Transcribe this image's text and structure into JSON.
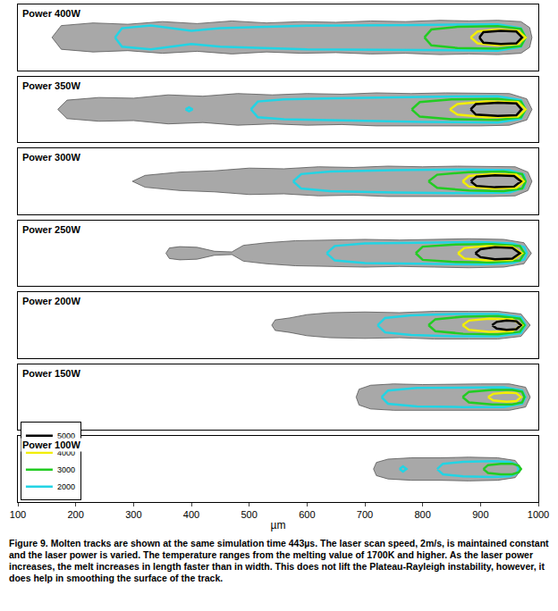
{
  "chart_data": {
    "type": "contour",
    "xlabel": "µm",
    "xlim": [
      100,
      1000
    ],
    "xticks": [
      100,
      200,
      300,
      400,
      500,
      600,
      700,
      800,
      900,
      1000
    ],
    "ylim": [
      -50,
      50
    ],
    "tick_labels": "x",
    "grid": false,
    "legend": "lower left",
    "levels": [
      {
        "value": 5000,
        "color": "#000000"
      },
      {
        "value": 4000,
        "color": "#f2ee00"
      },
      {
        "value": 3000,
        "color": "#22cc22"
      },
      {
        "value": 2000,
        "color": "#22d4e4"
      }
    ],
    "panels": [
      {
        "title": "Power 400W",
        "track": {
          "color": "#a8a8a8",
          "x": [
            159,
            175,
            230,
            290,
            350,
            410,
            470,
            530,
            590,
            650,
            710,
            770,
            830,
            880,
            930,
            970,
            985,
            989
          ],
          "half_width": [
            0,
            18,
            22,
            20,
            24,
            21,
            25,
            22,
            24,
            23,
            25,
            24,
            26,
            25,
            26,
            24,
            15,
            0
          ]
        },
        "contours": [
          {
            "level": 2000,
            "x": [
              268,
              280,
              330,
              400,
              450,
              600,
              800,
              930,
              970,
              978
            ],
            "half_width": [
              0,
              14,
              18,
              10,
              14,
              18,
              19,
              20,
              14,
              0
            ]
          },
          {
            "level": 3000,
            "x": [
              803,
              815,
              860,
              930,
              970,
              978
            ],
            "half_width": [
              0,
              12,
              16,
              17,
              13,
              0
            ]
          },
          {
            "level": 4000,
            "x": [
              883,
              895,
              930,
              965,
              978
            ],
            "half_width": [
              0,
              9,
              12,
              10,
              0
            ]
          },
          {
            "level": 5000,
            "x": [
              898,
              905,
              935,
              962,
              972
            ],
            "half_width": [
              0,
              8,
              10,
              9,
              0
            ]
          }
        ]
      },
      {
        "title": "Power 350W",
        "track": {
          "color": "#a8a8a8",
          "x": [
            169,
            185,
            240,
            300,
            360,
            420,
            480,
            540,
            600,
            660,
            720,
            780,
            840,
            900,
            950,
            980,
            989
          ],
          "half_width": [
            0,
            14,
            18,
            17,
            22,
            20,
            24,
            22,
            24,
            23,
            25,
            24,
            25,
            25,
            24,
            16,
            0
          ]
        },
        "contours": [
          {
            "level": 2000,
            "x": [
              390,
              396,
              402
            ],
            "half_width": [
              0,
              3,
              0
            ]
          },
          {
            "level": 2000,
            "x": [
              503,
              515,
              560,
              650,
              800,
              930,
              970,
              978
            ],
            "half_width": [
              0,
              12,
              15,
              17,
              19,
              20,
              14,
              0
            ]
          },
          {
            "level": 3000,
            "x": [
              781,
              795,
              850,
              930,
              970,
              978
            ],
            "half_width": [
              0,
              11,
              15,
              16,
              12,
              0
            ]
          },
          {
            "level": 4000,
            "x": [
              847,
              860,
              910,
              965,
              978
            ],
            "half_width": [
              0,
              8,
              12,
              11,
              0
            ]
          },
          {
            "level": 5000,
            "x": [
              883,
              892,
              930,
              962,
              971
            ],
            "half_width": [
              0,
              8,
              10,
              9,
              0
            ]
          }
        ]
      },
      {
        "title": "Power 300W",
        "track": {
          "color": "#a8a8a8",
          "x": [
            298,
            320,
            380,
            440,
            500,
            560,
            620,
            680,
            740,
            800,
            860,
            920,
            960,
            982,
            989
          ],
          "half_width": [
            0,
            9,
            14,
            16,
            20,
            19,
            22,
            21,
            23,
            22,
            23,
            23,
            22,
            14,
            0
          ]
        },
        "contours": [
          {
            "level": 2000,
            "x": [
              576,
              590,
              640,
              750,
              880,
              950,
              975,
              978
            ],
            "half_width": [
              0,
              11,
              15,
              17,
              18,
              17,
              10,
              0
            ]
          },
          {
            "level": 3000,
            "x": [
              810,
              825,
              880,
              940,
              972,
              978
            ],
            "half_width": [
              0,
              10,
              14,
              15,
              11,
              0
            ]
          },
          {
            "level": 4000,
            "x": [
              869,
              880,
              920,
              962,
              975
            ],
            "half_width": [
              0,
              8,
              11,
              10,
              0
            ]
          },
          {
            "level": 5000,
            "x": [
              883,
              893,
              925,
              958,
              970
            ],
            "half_width": [
              0,
              7,
              9,
              8,
              0
            ]
          }
        ]
      },
      {
        "title": "Power 250W",
        "track": {
          "color": "#a8a8a8",
          "x": [
            356,
            362,
            380,
            410,
            440,
            470,
            490,
            530,
            580,
            640,
            700,
            760,
            820,
            880,
            940,
            975,
            988
          ],
          "half_width": [
            0,
            8,
            10,
            9,
            3,
            2,
            12,
            16,
            19,
            20,
            21,
            20,
            21,
            22,
            21,
            16,
            0
          ]
        },
        "contours": [
          {
            "level": 2000,
            "x": [
              634,
              648,
              700,
              800,
              900,
              955,
              976,
              980
            ],
            "half_width": [
              0,
              11,
              15,
              16,
              17,
              15,
              9,
              0
            ]
          },
          {
            "level": 3000,
            "x": [
              788,
              800,
              850,
              920,
              968,
              976
            ],
            "half_width": [
              0,
              10,
              13,
              14,
              11,
              0
            ]
          },
          {
            "level": 4000,
            "x": [
              861,
              872,
              910,
              955,
              972
            ],
            "half_width": [
              0,
              8,
              11,
              10,
              0
            ]
          },
          {
            "level": 5000,
            "x": [
              891,
              900,
              925,
              955,
              968
            ],
            "half_width": [
              0,
              6,
              9,
              8,
              0
            ]
          }
        ]
      },
      {
        "title": "Power 200W",
        "track": {
          "color": "#a8a8a8",
          "x": [
            539,
            545,
            570,
            600,
            640,
            700,
            760,
            820,
            880,
            930,
            970,
            986
          ],
          "half_width": [
            0,
            8,
            11,
            16,
            19,
            20,
            19,
            21,
            21,
            21,
            17,
            0
          ]
        },
        "contours": [
          {
            "level": 2000,
            "x": [
              722,
              735,
              780,
              860,
              930,
              970,
              978
            ],
            "half_width": [
              0,
              11,
              15,
              17,
              17,
              12,
              0
            ]
          },
          {
            "level": 3000,
            "x": [
              810,
              822,
              870,
              930,
              968,
              976
            ],
            "half_width": [
              0,
              9,
              13,
              14,
              10,
              0
            ]
          },
          {
            "level": 4000,
            "x": [
              869,
              880,
              915,
              955,
              972
            ],
            "half_width": [
              0,
              7,
              10,
              9,
              0
            ]
          },
          {
            "level": 5000,
            "x": [
              920,
              928,
              945,
              962,
              970
            ],
            "half_width": [
              0,
              5,
              7,
              6,
              0
            ]
          }
        ]
      },
      {
        "title": "Power 150W",
        "track": {
          "color": "#a8a8a8",
          "x": [
            685,
            690,
            710,
            750,
            800,
            850,
            900,
            950,
            978,
            986
          ],
          "half_width": [
            0,
            12,
            18,
            20,
            19,
            20,
            20,
            20,
            15,
            0
          ]
        },
        "contours": [
          {
            "level": 2000,
            "x": [
              729,
              740,
              790,
              870,
              940,
              972,
              978
            ],
            "half_width": [
              0,
              10,
              14,
              15,
              15,
              10,
              0
            ]
          },
          {
            "level": 3000,
            "x": [
              869,
              880,
              920,
              955,
              972,
              976
            ],
            "half_width": [
              0,
              8,
              11,
              11,
              8,
              0
            ]
          },
          {
            "level": 4000,
            "x": [
              913,
              922,
              945,
              962,
              970
            ],
            "half_width": [
              0,
              5,
              7,
              6,
              0
            ]
          }
        ]
      },
      {
        "title": "Power 100W",
        "track": {
          "color": "#a8a8a8",
          "x": [
            715,
            720,
            740,
            780,
            830,
            880,
            930,
            960,
            971
          ],
          "half_width": [
            0,
            10,
            15,
            17,
            17,
            18,
            17,
            13,
            0
          ]
        },
        "contours": [
          {
            "level": 2000,
            "x": [
              760,
              766,
              772
            ],
            "half_width": [
              0,
              4,
              0
            ]
          },
          {
            "level": 2000,
            "x": [
              825,
              835,
              870,
              920,
              950,
              962,
              966
            ],
            "half_width": [
              0,
              8,
              11,
              12,
              11,
              7,
              0
            ]
          },
          {
            "level": 3000,
            "x": [
              905,
              913,
              935,
              955,
              966,
              970
            ],
            "half_width": [
              0,
              6,
              8,
              8,
              5,
              0
            ]
          }
        ]
      }
    ],
    "caption": "Figure 9. Molten tracks are shown at the same simulation time 443µs. The laser scan speed, 2m/s, is maintained constant and the laser power is varied. The temperature ranges from the melting value of 1700K and higher. As the laser power increases, the melt increases in length faster than in width. This does not lift the Plateau-Rayleigh instability, however, it does help in smoothing the surface of the track."
  }
}
